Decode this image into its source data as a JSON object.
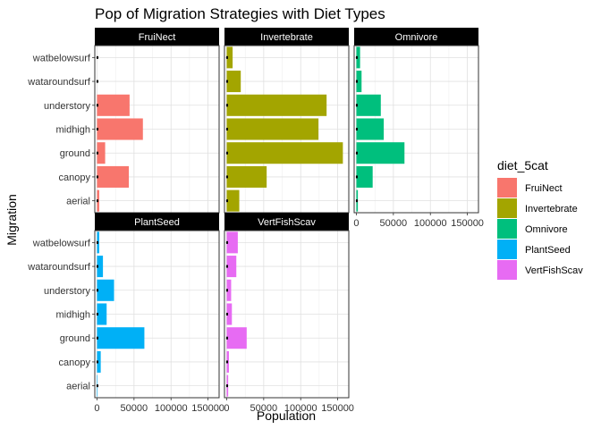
{
  "chart_data": {
    "type": "bar",
    "orientation": "horizontal",
    "title": "Pop of Migration Strategies with Diet Types",
    "xlabel": "Population",
    "ylabel": "Migration",
    "categories": [
      "watbelowsurf",
      "wataroundsurf",
      "understory",
      "midhigh",
      "ground",
      "canopy",
      "aerial"
    ],
    "xlim": [
      -3000,
      165000
    ],
    "xticks": [
      0,
      50000,
      100000,
      150000
    ],
    "xtick_labels": [
      "0",
      "50000",
      "100000",
      "150000"
    ],
    "grid": true,
    "legend": {
      "title": "diet_5cat",
      "position": "right",
      "items": [
        {
          "label": "FruiNect",
          "color": "#F8766D"
        },
        {
          "label": "Invertebrate",
          "color": "#A3A500"
        },
        {
          "label": "Omnivore",
          "color": "#00BF7D"
        },
        {
          "label": "PlantSeed",
          "color": "#00B0F6"
        },
        {
          "label": "VertFishScav",
          "color": "#E76BF3"
        }
      ]
    },
    "panels": [
      {
        "name": "FruiNect",
        "color": "#F8766D",
        "values": {
          "watbelowsurf": 0,
          "wataroundsurf": 0,
          "understory": 44000,
          "midhigh": 62000,
          "ground": 11000,
          "canopy": 43000,
          "aerial": 3000
        }
      },
      {
        "name": "Invertebrate",
        "color": "#A3A500",
        "values": {
          "watbelowsurf": 8000,
          "wataroundsurf": 19000,
          "understory": 135000,
          "midhigh": 124000,
          "ground": 157000,
          "canopy": 54000,
          "aerial": 17000
        }
      },
      {
        "name": "Omnivore",
        "color": "#00BF7D",
        "values": {
          "watbelowsurf": 5000,
          "wataroundsurf": 7000,
          "understory": 33000,
          "midhigh": 37000,
          "ground": 65000,
          "canopy": 22000,
          "aerial": 2000
        }
      },
      {
        "name": "PlantSeed",
        "color": "#00B0F6",
        "values": {
          "watbelowsurf": 3000,
          "wataroundsurf": 8000,
          "understory": 23000,
          "midhigh": 13000,
          "ground": 64000,
          "canopy": 5000,
          "aerial": 500
        }
      },
      {
        "name": "VertFishScav",
        "color": "#E76BF3",
        "values": {
          "watbelowsurf": 15000,
          "wataroundsurf": 13000,
          "understory": 6000,
          "midhigh": 7000,
          "ground": 27000,
          "canopy": 3000,
          "aerial": 2000
        }
      }
    ]
  }
}
